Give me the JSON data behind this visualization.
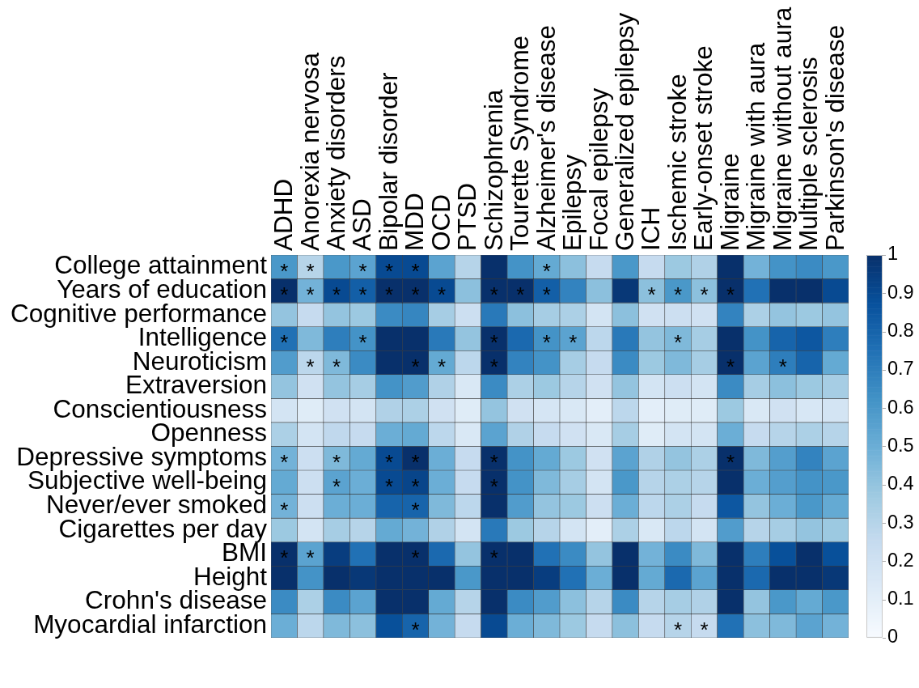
{
  "chart_data": {
    "type": "heatmap",
    "categories": [
      "ADHD",
      "Anorexia nervosa",
      "Anxiety disorders",
      "ASD",
      "Bipolar disorder",
      "MDD",
      "OCD",
      "PTSD",
      "Schizophrenia",
      "Tourette Syndrome",
      "Alzheimer's disease",
      "Epilepsy",
      "Focal epilepsy",
      "Generalized epilepsy",
      "ICH",
      "Ischemic stroke",
      "Early-onset stroke",
      "Migraine",
      "Migraine with aura",
      "Migraine without aura",
      "Multiple sclerosis",
      "Parkinson's disease"
    ],
    "y_categories": [
      "College attainment",
      "Years of education",
      "Cognitive performance",
      "Intelligence",
      "Neuroticism",
      "Extraversion",
      "Conscientiousness",
      "Openness",
      "Depressive symptoms",
      "Subjective well-being",
      "Never/ever smoked",
      "Cigarettes per day",
      "BMI",
      "Height",
      "Crohn's disease",
      "Myocardial infarction"
    ],
    "cells": [
      [
        0.6,
        0.3,
        0.6,
        0.55,
        0.9,
        0.9,
        0.55,
        0.3,
        1,
        0.62,
        0.52,
        0.42,
        0.25,
        0.6,
        0.25,
        0.38,
        0.32,
        1,
        0.48,
        0.62,
        0.65,
        0.6
      ],
      [
        1,
        0.48,
        0.9,
        0.82,
        1,
        1,
        0.9,
        0.42,
        1,
        1,
        0.82,
        0.68,
        0.42,
        0.97,
        0.42,
        0.6,
        0.42,
        1,
        0.75,
        1,
        1,
        0.9
      ],
      [
        0.4,
        0.25,
        0.4,
        0.38,
        0.65,
        0.67,
        0.35,
        0.22,
        0.72,
        0.42,
        0.35,
        0.33,
        0.18,
        0.42,
        0.2,
        0.22,
        0.2,
        0.68,
        0.33,
        0.4,
        0.38,
        0.4
      ],
      [
        0.75,
        0.45,
        0.7,
        0.62,
        1,
        1,
        0.72,
        0.4,
        1,
        0.78,
        0.62,
        0.55,
        0.28,
        0.72,
        0.4,
        0.45,
        0.35,
        1,
        0.62,
        0.8,
        0.85,
        0.7
      ],
      [
        0.58,
        0.28,
        0.45,
        0.65,
        1,
        1,
        0.52,
        0.28,
        1,
        0.68,
        0.62,
        0.35,
        0.25,
        0.65,
        0.38,
        0.45,
        0.35,
        1,
        0.55,
        0.7,
        0.8,
        0.52
      ],
      [
        0.4,
        0.2,
        0.4,
        0.35,
        0.62,
        0.58,
        0.32,
        0.15,
        0.65,
        0.33,
        0.38,
        0.3,
        0.2,
        0.4,
        0.18,
        0.22,
        0.18,
        0.65,
        0.35,
        0.42,
        0.38,
        0.35
      ],
      [
        0.18,
        0.12,
        0.2,
        0.18,
        0.32,
        0.33,
        0.2,
        0.12,
        0.4,
        0.2,
        0.17,
        0.15,
        0.1,
        0.28,
        0.1,
        0.12,
        0.12,
        0.38,
        0.15,
        0.2,
        0.16,
        0.18
      ],
      [
        0.33,
        0.18,
        0.27,
        0.25,
        0.5,
        0.52,
        0.28,
        0.15,
        0.55,
        0.32,
        0.25,
        0.2,
        0.15,
        0.35,
        0.12,
        0.18,
        0.18,
        0.5,
        0.25,
        0.3,
        0.33,
        0.3
      ],
      [
        0.48,
        0.22,
        0.45,
        0.52,
        0.9,
        1,
        0.5,
        0.25,
        1,
        0.62,
        0.52,
        0.38,
        0.2,
        0.55,
        0.32,
        0.4,
        0.33,
        1,
        0.45,
        0.57,
        0.68,
        0.55
      ],
      [
        0.52,
        0.22,
        0.55,
        0.5,
        0.9,
        0.92,
        0.5,
        0.25,
        1,
        0.62,
        0.45,
        0.35,
        0.18,
        0.6,
        0.3,
        0.33,
        0.3,
        1,
        0.5,
        0.57,
        0.62,
        0.6
      ],
      [
        0.48,
        0.22,
        0.5,
        0.5,
        0.8,
        0.8,
        0.45,
        0.28,
        1,
        0.58,
        0.4,
        0.38,
        0.22,
        0.5,
        0.28,
        0.33,
        0.25,
        0.85,
        0.4,
        0.5,
        0.6,
        0.52
      ],
      [
        0.38,
        0.18,
        0.35,
        0.3,
        0.52,
        0.48,
        0.32,
        0.18,
        0.72,
        0.38,
        0.3,
        0.18,
        0.1,
        0.33,
        0.15,
        0.28,
        0.18,
        0.58,
        0.3,
        0.35,
        0.4,
        0.38
      ],
      [
        1,
        0.55,
        0.95,
        0.75,
        1,
        1,
        0.78,
        0.4,
        1,
        1,
        0.75,
        0.65,
        0.4,
        1,
        0.48,
        0.65,
        0.45,
        1,
        0.7,
        0.88,
        1,
        0.88
      ],
      [
        1,
        0.62,
        1,
        0.97,
        1,
        1,
        1,
        0.6,
        1,
        1,
        0.95,
        0.75,
        0.5,
        1,
        0.52,
        0.78,
        0.55,
        1,
        0.78,
        1,
        1,
        0.97
      ],
      [
        0.65,
        0.33,
        0.65,
        0.55,
        1,
        1,
        0.52,
        0.3,
        1,
        0.65,
        0.58,
        0.42,
        0.3,
        0.65,
        0.3,
        0.35,
        0.32,
        1,
        0.4,
        0.6,
        0.52,
        0.6
      ],
      [
        0.5,
        0.28,
        0.45,
        0.42,
        0.88,
        0.8,
        0.48,
        0.25,
        0.9,
        0.5,
        0.45,
        0.38,
        0.25,
        0.42,
        0.25,
        0.3,
        0.25,
        0.75,
        0.42,
        0.45,
        0.55,
        0.48
      ]
    ],
    "cell_labels": [
      [
        "*",
        "*",
        null,
        "*",
        "*",
        "*",
        null,
        null,
        null,
        null,
        "*",
        null,
        null,
        null,
        null,
        null,
        null,
        null,
        null,
        null,
        null,
        null
      ],
      [
        "*",
        "*",
        "*",
        "*",
        "*",
        "*",
        "*",
        null,
        "*",
        "*",
        "*",
        null,
        null,
        null,
        "*",
        "*",
        "*",
        "*",
        null,
        null,
        null,
        null
      ],
      [
        null,
        null,
        null,
        null,
        null,
        null,
        null,
        null,
        null,
        null,
        null,
        null,
        null,
        null,
        null,
        null,
        null,
        null,
        null,
        null,
        null,
        null
      ],
      [
        "*",
        null,
        null,
        "*",
        null,
        null,
        null,
        null,
        "*",
        null,
        "*",
        "*",
        null,
        null,
        null,
        "*",
        null,
        null,
        null,
        null,
        null,
        null
      ],
      [
        null,
        "*",
        "*",
        null,
        null,
        "*",
        "*",
        null,
        "*",
        null,
        null,
        null,
        null,
        null,
        null,
        null,
        null,
        "*",
        null,
        "*",
        null,
        null
      ],
      [
        null,
        null,
        null,
        null,
        null,
        null,
        null,
        null,
        null,
        null,
        null,
        null,
        null,
        null,
        null,
        null,
        null,
        null,
        null,
        null,
        null,
        null
      ],
      [
        null,
        null,
        null,
        null,
        null,
        null,
        null,
        null,
        null,
        null,
        null,
        null,
        null,
        null,
        null,
        null,
        null,
        null,
        null,
        null,
        null,
        null
      ],
      [
        null,
        null,
        null,
        null,
        null,
        null,
        null,
        null,
        null,
        null,
        null,
        null,
        null,
        null,
        null,
        null,
        null,
        null,
        null,
        null,
        null,
        null
      ],
      [
        "*",
        null,
        "*",
        null,
        "*",
        "*",
        null,
        null,
        "*",
        null,
        null,
        null,
        null,
        null,
        null,
        null,
        null,
        "*",
        null,
        null,
        null,
        null
      ],
      [
        null,
        null,
        "*",
        null,
        "*",
        "*",
        null,
        null,
        "*",
        null,
        null,
        null,
        null,
        null,
        null,
        null,
        null,
        null,
        null,
        null,
        null,
        null
      ],
      [
        "*",
        null,
        null,
        null,
        null,
        "*",
        null,
        null,
        null,
        null,
        null,
        null,
        null,
        null,
        null,
        null,
        null,
        null,
        null,
        null,
        null,
        null
      ],
      [
        null,
        null,
        null,
        null,
        null,
        null,
        null,
        null,
        null,
        null,
        null,
        null,
        null,
        null,
        null,
        null,
        null,
        null,
        null,
        null,
        null,
        null
      ],
      [
        "*",
        "*",
        null,
        null,
        null,
        "*",
        null,
        null,
        "*",
        null,
        null,
        null,
        null,
        null,
        null,
        null,
        null,
        null,
        null,
        null,
        null,
        null
      ],
      [
        null,
        null,
        null,
        null,
        null,
        null,
        null,
        null,
        null,
        null,
        null,
        null,
        null,
        null,
        null,
        null,
        null,
        null,
        null,
        null,
        null,
        null
      ],
      [
        null,
        null,
        null,
        null,
        null,
        null,
        null,
        null,
        null,
        null,
        null,
        null,
        null,
        null,
        null,
        null,
        null,
        null,
        null,
        null,
        null,
        null
      ],
      [
        null,
        null,
        null,
        null,
        null,
        "*",
        null,
        null,
        null,
        null,
        null,
        null,
        null,
        null,
        null,
        "*",
        "*",
        null,
        null,
        null,
        null,
        null
      ]
    ],
    "clim": [
      0,
      1
    ],
    "cticks": [
      0,
      0.1,
      0.2,
      0.3,
      0.4,
      0.5,
      0.6,
      0.7,
      0.8,
      0.9,
      1
    ]
  }
}
